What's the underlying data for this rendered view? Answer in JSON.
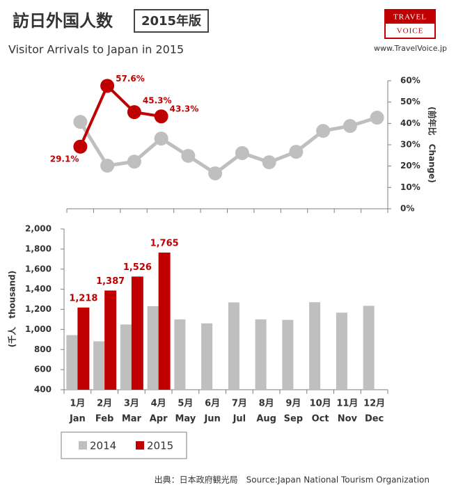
{
  "header": {
    "title": "訪日外国人数",
    "badge": "2015年版",
    "subtitle": "Visitor Arrivals to Japan in 2015",
    "logo_top": "TRAVEL",
    "logo_bottom": "VOICE",
    "url": "www.TravelVoice.jp"
  },
  "chart_data": [
    {
      "type": "line",
      "y2label": "(前年比　Change)",
      "y2lim": [
        0,
        60
      ],
      "y2ticks": [
        {
          "value": 0,
          "label": "0%"
        },
        {
          "value": 10,
          "label": "10%"
        },
        {
          "value": 20,
          "label": "20%"
        },
        {
          "value": 30,
          "label": "30%"
        },
        {
          "value": 40,
          "label": "40%"
        },
        {
          "value": 50,
          "label": "50%"
        },
        {
          "value": 60,
          "label": "60%"
        }
      ],
      "series": [
        {
          "color": "#bfbfbf",
          "axis": "y2",
          "values": [
            40.7,
            20.2,
            22.1,
            32.9,
            24.8,
            16.6,
            26.1,
            21.8,
            26.7,
            36.5,
            38.8,
            42.7
          ]
        },
        {
          "color": "#c00000",
          "axis": "y2",
          "values": [
            29.1,
            57.6,
            45.3,
            43.3,
            null,
            null,
            null,
            null,
            null,
            null,
            null,
            null
          ],
          "value_labels": [
            "29.1%",
            "57.6%",
            "45.3%",
            "43.3%",
            null,
            null,
            null,
            null,
            null,
            null,
            null,
            null
          ]
        }
      ]
    },
    {
      "type": "bar",
      "ylabel": "(千人　thousand)",
      "categories": [
        "1月",
        "2月",
        "3月",
        "4月",
        "5月",
        "6月",
        "7月",
        "8月",
        "9月",
        "10月",
        "11月",
        "12月"
      ],
      "categories_en": [
        "Jan",
        "Feb",
        "Mar",
        "Apr",
        "May",
        "Jun",
        "Jul",
        "Aug",
        "Sep",
        "Oct",
        "Nov",
        "Dec"
      ],
      "ylim": [
        400,
        2000
      ],
      "yticks": [
        400,
        600,
        800,
        {
          "value": 1000,
          "label": "1,000"
        },
        {
          "value": 1200,
          "label": "1,200"
        },
        {
          "value": 1400,
          "label": "1,400"
        },
        {
          "value": 1600,
          "label": "1,600"
        },
        {
          "value": 1800,
          "label": "1,800"
        },
        {
          "value": 2000,
          "label": "2,000"
        }
      ],
      "series": [
        {
          "name": "2014",
          "color": "#bfbfbf",
          "values": [
            943,
            882,
            1049,
            1231,
            1100,
            1060,
            1269,
            1100,
            1095,
            1271,
            1167,
            1235
          ]
        },
        {
          "name": "2015",
          "color": "#c00000",
          "values": [
            1218,
            1387,
            1526,
            1765,
            null,
            null,
            null,
            null,
            null,
            null,
            null,
            null
          ],
          "value_labels": [
            "1,218",
            "1,387",
            "1,526",
            "1,765",
            null,
            null,
            null,
            null,
            null,
            null,
            null,
            null
          ]
        }
      ]
    }
  ],
  "source": "出典：日本政府観光局　Source:Japan National Tourism Organization"
}
